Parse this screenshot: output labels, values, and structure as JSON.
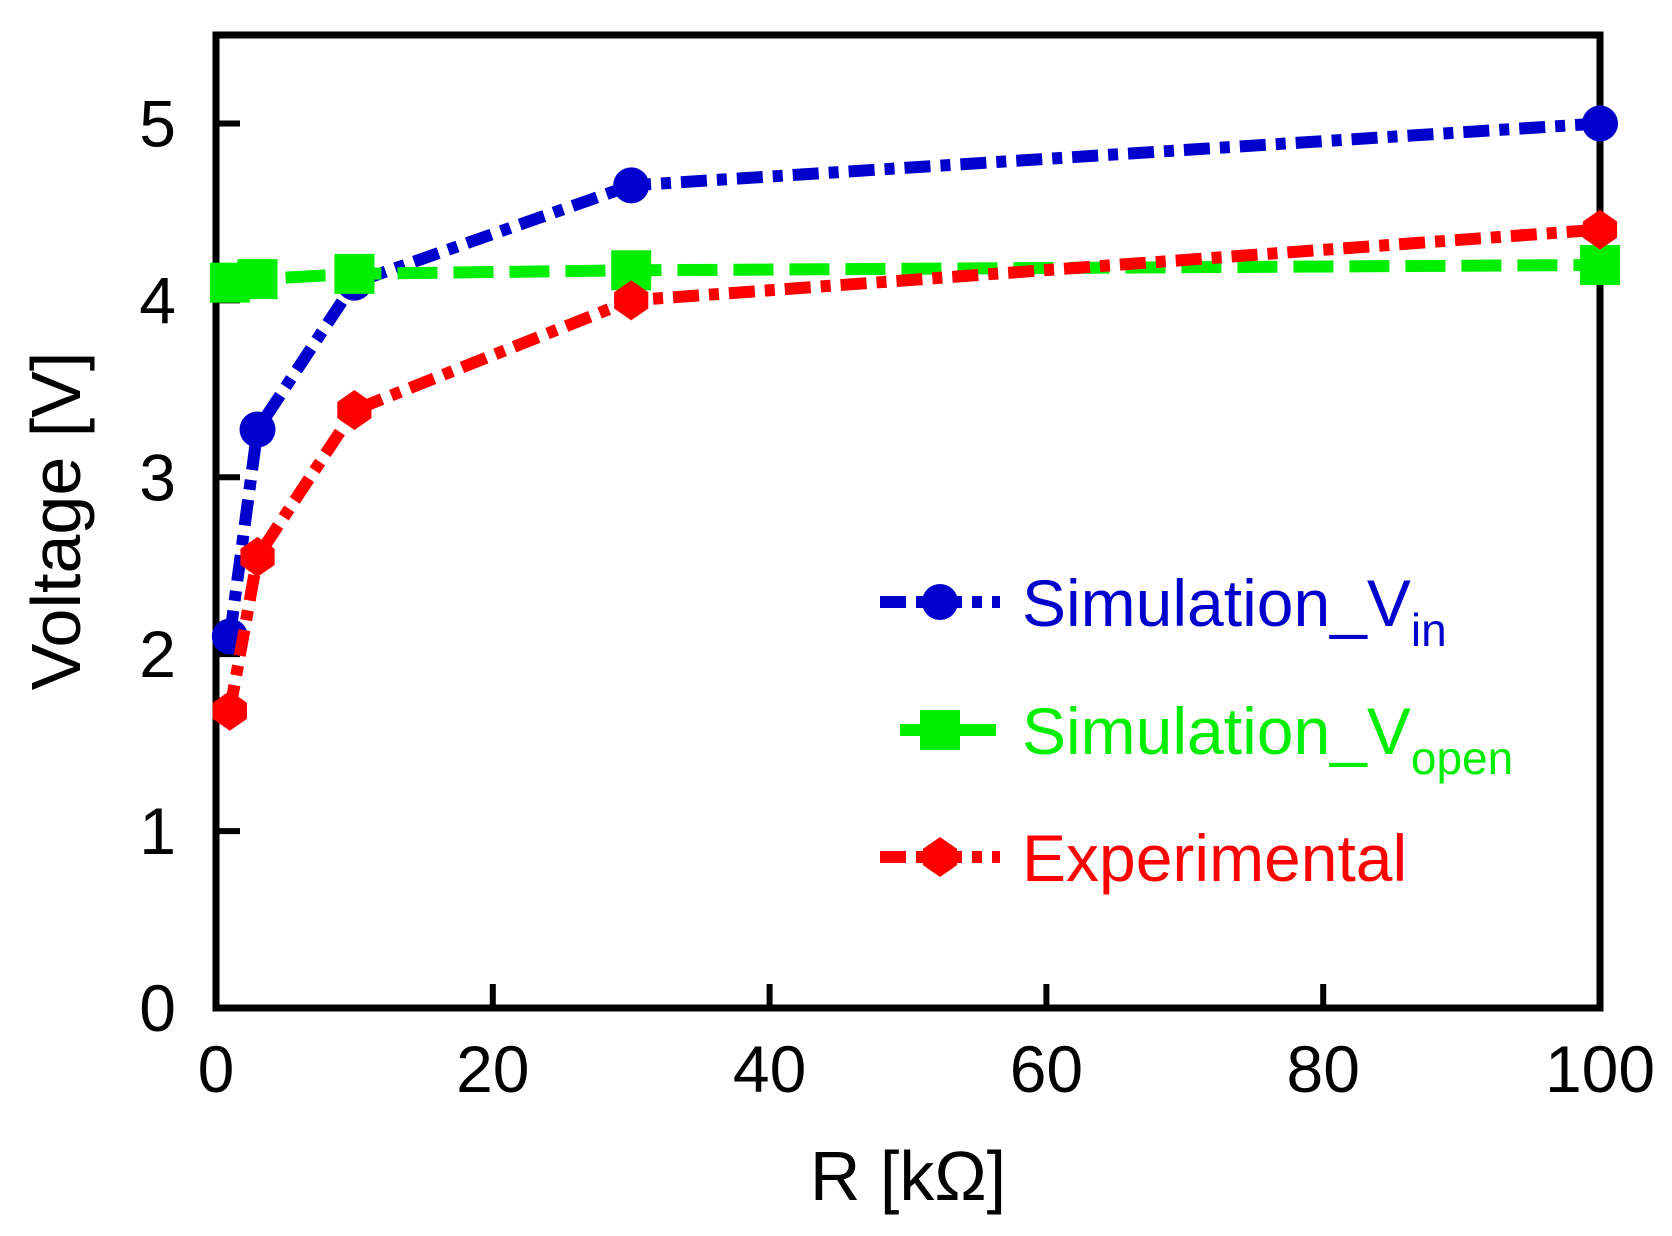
{
  "chart_data": {
    "type": "line",
    "title": "",
    "xlabel": "R [kΩ]",
    "ylabel": "Voltage [V]",
    "xlim": [
      0,
      100
    ],
    "ylim": [
      0,
      5.5
    ],
    "xticks": [
      0,
      20,
      40,
      60,
      80,
      100
    ],
    "yticks": [
      0,
      1,
      2,
      3,
      4,
      5
    ],
    "grid": false,
    "legend_position": "right",
    "series": [
      {
        "name": "Simulation_Vin",
        "label_main": "Simulation_V",
        "label_sub": "in",
        "color": "#0000cc",
        "marker": "circle",
        "line_style": "dash-dot",
        "x": [
          1,
          3,
          10,
          30,
          100
        ],
        "y": [
          2.1,
          3.27,
          4.1,
          4.65,
          5.0
        ]
      },
      {
        "name": "Simulation_Vopen",
        "label_main": "Simulation_V",
        "label_sub": "open",
        "color": "#00ee00",
        "marker": "square",
        "line_style": "dashed",
        "x": [
          1,
          3,
          10,
          30,
          100
        ],
        "y": [
          4.1,
          4.12,
          4.15,
          4.17,
          4.2
        ]
      },
      {
        "name": "Experimental",
        "label_main": "Experimental",
        "label_sub": "",
        "color": "#ff0000",
        "marker": "diamond",
        "line_style": "dash-dot",
        "x": [
          1,
          3,
          10,
          30,
          100
        ],
        "y": [
          1.68,
          2.55,
          3.38,
          4.0,
          4.4
        ]
      }
    ]
  }
}
